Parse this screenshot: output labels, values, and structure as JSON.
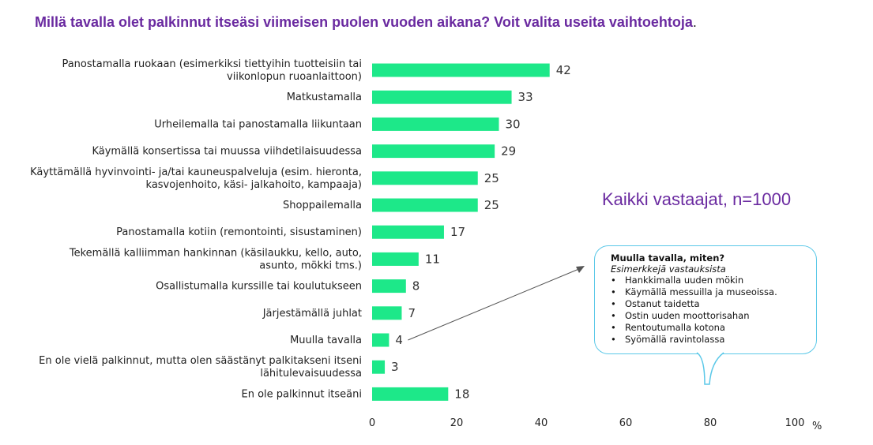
{
  "title": "Millä tavalla olet palkinnut itseäsi viimeisen puolen vuoden aikana? Voit valita useita vaihtoehtoja",
  "title_end": ".",
  "subtitle": "Kaikki vastaajat, n=1000",
  "callout": {
    "heading": "Muulla tavalla, miten?",
    "subheading": "Esimerkkejä vastauksista",
    "items": [
      "Hankkimalla uuden mökin",
      "Käymällä messuilla ja museoissa.",
      "Ostanut taidetta",
      "Ostin uuden moottorisahan",
      "Rentoutumalla kotona",
      "Syömällä ravintolassa"
    ]
  },
  "colors": {
    "bar": "#1de889",
    "title": "#6a2aa0",
    "callout_border": "#5bc8e8",
    "arrow": "#555555"
  },
  "chart_data": {
    "type": "bar",
    "orientation": "horizontal",
    "categories": [
      [
        "Panostamalla ruokaan (esimerkiksi tiettyihin tuotteisiin tai",
        "viikonlopun ruoanlaittoon)"
      ],
      [
        "Matkustamalla"
      ],
      [
        "Urheilemalla tai panostamalla liikuntaan"
      ],
      [
        "Käymällä konsertissa tai muussa viihdetilaisuudessa"
      ],
      [
        "Käyttämällä hyvinvointi- ja/tai kauneuspalveluja (esim. hieronta,",
        "kasvojenhoito, käsi- jalkahoito, kampaaja)"
      ],
      [
        "Shoppailemalla"
      ],
      [
        "Panostamalla kotiin (remontointi, sisustaminen)"
      ],
      [
        "Tekemällä kalliimman hankinnan (käsilaukku, kello, auto,",
        "asunto, mökki tms.)"
      ],
      [
        "Osallistumalla kurssille tai koulutukseen"
      ],
      [
        "Järjestämällä juhlat"
      ],
      [
        "Muulla tavalla"
      ],
      [
        "En ole vielä palkinnut, mutta olen säästänyt palkitakseni itseni",
        "lähitulevaisuudessa"
      ],
      [
        "En ole palkinnut itseäni"
      ]
    ],
    "values": [
      42,
      33,
      30,
      29,
      25,
      25,
      17,
      11,
      8,
      7,
      4,
      3,
      18
    ],
    "xlim": [
      0,
      100
    ],
    "xticks": [
      0,
      20,
      40,
      60,
      80,
      100
    ],
    "unit_label": "%",
    "grid": false
  }
}
